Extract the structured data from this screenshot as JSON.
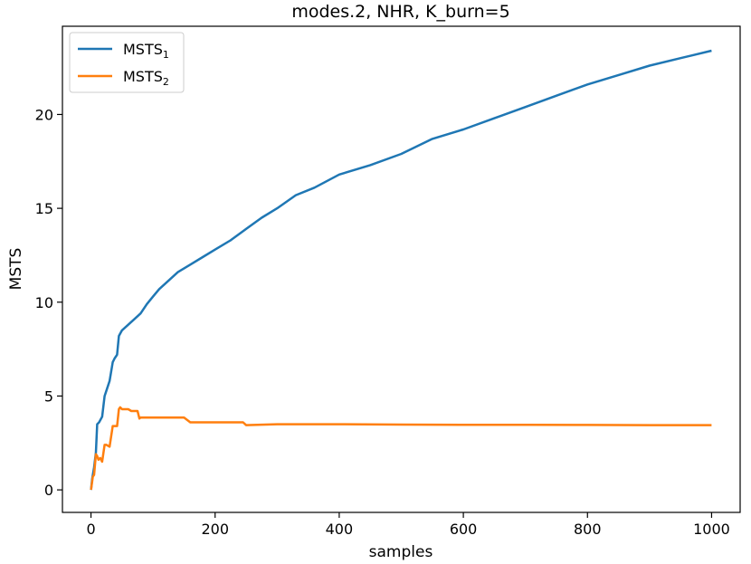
{
  "chart_data": {
    "type": "line",
    "title": "modes.2, NHR, K_burn=5",
    "xlabel": "samples",
    "ylabel": "MSTS",
    "xlim": [
      -46,
      1046
    ],
    "ylim": [
      -1.2,
      24.7
    ],
    "xticks": [
      0,
      200,
      400,
      600,
      800,
      1000
    ],
    "yticks": [
      0,
      5,
      10,
      15,
      20
    ],
    "grid": false,
    "legend_position": "top-left",
    "series": [
      {
        "name": "MSTS",
        "name_subscript": "1",
        "color": "#1f77b4",
        "x": [
          0,
          2,
          5,
          8,
          10,
          13,
          18,
          22,
          25,
          30,
          35,
          38,
          42,
          45,
          50,
          60,
          70,
          80,
          90,
          100,
          110,
          120,
          140,
          160,
          180,
          200,
          225,
          250,
          275,
          300,
          330,
          360,
          400,
          450,
          500,
          550,
          600,
          650,
          700,
          750,
          800,
          850,
          900,
          950,
          1000
        ],
        "values": [
          0.0,
          0.6,
          1.2,
          2.0,
          3.5,
          3.6,
          3.9,
          5.0,
          5.3,
          5.8,
          6.8,
          7.0,
          7.2,
          8.2,
          8.5,
          8.8,
          9.1,
          9.4,
          9.9,
          10.3,
          10.7,
          11.0,
          11.6,
          12.0,
          12.4,
          12.8,
          13.3,
          13.9,
          14.5,
          15.0,
          15.7,
          16.1,
          16.8,
          17.3,
          17.9,
          18.7,
          19.2,
          19.8,
          20.4,
          21.0,
          21.6,
          22.1,
          22.6,
          23.0,
          23.4
        ]
      },
      {
        "name": "MSTS",
        "name_subscript": "2",
        "color": "#ff7f0e",
        "x": [
          0,
          3,
          5,
          8,
          10,
          12,
          15,
          18,
          22,
          25,
          30,
          35,
          38,
          42,
          45,
          47,
          50,
          55,
          60,
          65,
          70,
          75,
          78,
          80,
          100,
          120,
          150,
          160,
          200,
          245,
          250,
          300,
          350,
          400,
          500,
          600,
          700,
          800,
          900,
          1000
        ],
        "values": [
          0.0,
          0.7,
          0.8,
          1.9,
          1.8,
          1.6,
          1.7,
          1.5,
          2.4,
          2.4,
          2.3,
          3.4,
          3.4,
          3.4,
          4.3,
          4.4,
          4.3,
          4.3,
          4.3,
          4.2,
          4.2,
          4.2,
          3.8,
          3.85,
          3.85,
          3.85,
          3.85,
          3.6,
          3.6,
          3.6,
          3.45,
          3.5,
          3.5,
          3.5,
          3.48,
          3.47,
          3.47,
          3.46,
          3.45,
          3.45
        ]
      }
    ]
  }
}
